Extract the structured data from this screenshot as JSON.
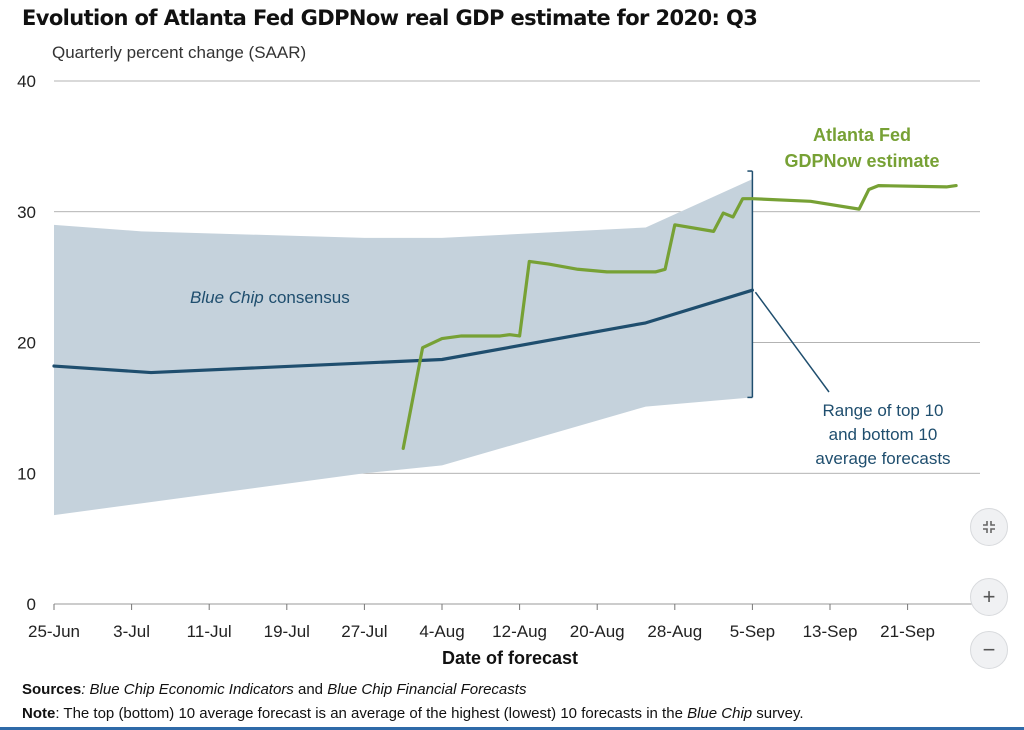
{
  "chart_data": {
    "type": "line",
    "title": "Evolution of Atlanta Fed GDPNow real GDP estimate for 2020: Q3",
    "subtitle": "Quarterly percent change (SAAR)",
    "xlabel": "Date of forecast",
    "ylabel": "",
    "ylim": [
      0,
      40
    ],
    "xlim_days": [
      0,
      92
    ],
    "yticks": [
      0,
      10,
      20,
      30,
      40
    ],
    "grid": true,
    "x_ticks": [
      {
        "label": "25-Jun",
        "day": 0
      },
      {
        "label": "3-Jul",
        "day": 8
      },
      {
        "label": "11-Jul",
        "day": 16
      },
      {
        "label": "19-Jul",
        "day": 24
      },
      {
        "label": "27-Jul",
        "day": 32
      },
      {
        "label": "4-Aug",
        "day": 40
      },
      {
        "label": "12-Aug",
        "day": 48
      },
      {
        "label": "20-Aug",
        "day": 56
      },
      {
        "label": "28-Aug",
        "day": 64
      },
      {
        "label": "5-Sep",
        "day": 72
      },
      {
        "label": "13-Sep",
        "day": 80
      },
      {
        "label": "21-Sep",
        "day": 88
      }
    ],
    "series": [
      {
        "name": "Blue Chip consensus range (top 10 / bottom 10 average forecasts)",
        "kind": "band",
        "color": "#c5d2dc",
        "points": [
          {
            "day": 0,
            "low": 6.8,
            "high": 29.0
          },
          {
            "day": 9,
            "low": 7.7,
            "high": 28.5
          },
          {
            "day": 32,
            "low": 10.0,
            "high": 28.0
          },
          {
            "day": 40,
            "low": 10.6,
            "high": 28.0
          },
          {
            "day": 61,
            "low": 15.1,
            "high": 28.8
          },
          {
            "day": 72,
            "low": 15.8,
            "high": 32.5
          }
        ]
      },
      {
        "name": "Blue Chip consensus",
        "kind": "line",
        "color": "#1f4e6e",
        "points": [
          {
            "day": 0,
            "value": 18.2
          },
          {
            "day": 10,
            "value": 17.7
          },
          {
            "day": 40,
            "value": 18.7
          },
          {
            "day": 61,
            "value": 21.5
          },
          {
            "day": 72,
            "value": 24.0
          }
        ]
      },
      {
        "name": "Atlanta Fed GDPNow estimate",
        "kind": "line",
        "color": "#77a135",
        "points": [
          {
            "day": 36,
            "value": 11.9
          },
          {
            "day": 38,
            "value": 19.6
          },
          {
            "day": 40,
            "value": 20.3
          },
          {
            "day": 42,
            "value": 20.5
          },
          {
            "day": 46,
            "value": 20.5
          },
          {
            "day": 47,
            "value": 20.6
          },
          {
            "day": 48,
            "value": 20.5
          },
          {
            "day": 49,
            "value": 26.2
          },
          {
            "day": 51,
            "value": 26.0
          },
          {
            "day": 54,
            "value": 25.6
          },
          {
            "day": 57,
            "value": 25.4
          },
          {
            "day": 62,
            "value": 25.4
          },
          {
            "day": 63,
            "value": 25.6
          },
          {
            "day": 64,
            "value": 29.0
          },
          {
            "day": 68,
            "value": 28.5
          },
          {
            "day": 69,
            "value": 29.9
          },
          {
            "day": 70,
            "value": 29.6
          },
          {
            "day": 71,
            "value": 31.0
          },
          {
            "day": 72,
            "value": 31.0
          },
          {
            "day": 78,
            "value": 30.8
          },
          {
            "day": 83,
            "value": 30.2
          },
          {
            "day": 84,
            "value": 31.7
          },
          {
            "day": 85,
            "value": 32.0
          },
          {
            "day": 92,
            "value": 31.9
          },
          {
            "day": 93,
            "value": 32.0
          }
        ]
      }
    ],
    "annotations": {
      "blue_chip_label_italic": "Blue Chip",
      "blue_chip_label_rest": " consensus",
      "gdpnow_label_line1": "Atlanta Fed",
      "gdpnow_label_line2": "GDPNow estimate",
      "range_label_line1": "Range of top 10",
      "range_label_line2": "and bottom 10",
      "range_label_line3": "average forecasts",
      "range_marker_day": 72
    }
  },
  "footer": {
    "sources_label": "Sources",
    "sources_sep1": ": ",
    "sources_pub1": "Blue Chip Economic Indicators",
    "sources_and": " and ",
    "sources_pub2": "Blue Chip Financial Forecasts",
    "note_label": "Note",
    "note_text1": ": The top (bottom) 10 average forecast is an average of the highest (lowest) 10 forecasts in the ",
    "note_italic": "Blue Chip",
    "note_text2": " survey."
  },
  "controls": {
    "collapse_icon": "collapse-arrows-icon",
    "zoom_in_label": "+",
    "zoom_out_label": "−"
  },
  "colors": {
    "band": "#c5d2dc",
    "consensus": "#1f4e6e",
    "gdpnow": "#77a135",
    "grid": "#9a9a9a",
    "range_label": "#1f4e6e"
  }
}
